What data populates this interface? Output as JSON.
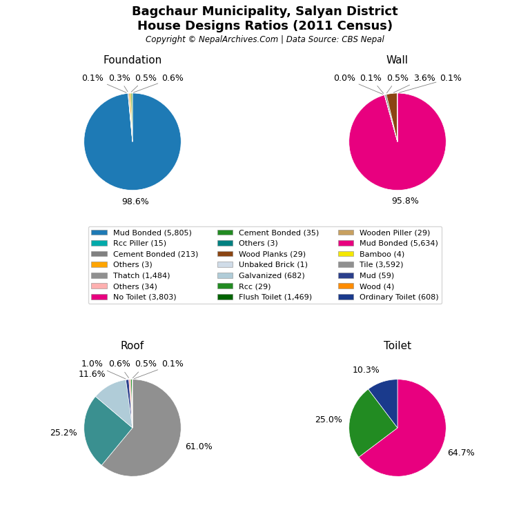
{
  "title": "Bagchaur Municipality, Salyan District",
  "subtitle": "House Designs Ratios (2011 Census)",
  "annotations": [
    "Copyright © NepalArchives.Com | Data Source: CBS Nepal"
  ],
  "legend": "center",
  "series": [
    {
      "name": "Mud Bonded (5,805)",
      "color": "#1e7ab5"
    },
    {
      "name": "Cement Bonded (35)",
      "color": "#228B22"
    },
    {
      "name": "Wooden Piller (29)",
      "color": "#c8a060"
    },
    {
      "name": "Rcc Piller (15)",
      "color": "#00aaaa"
    },
    {
      "name": "Others (3)",
      "color": "#008080"
    },
    {
      "name": "Mud Bonded (5,634)",
      "color": "#e8007f"
    },
    {
      "name": "Cement Bonded (213)",
      "color": "#808080"
    },
    {
      "name": "Wood Planks (29)",
      "color": "#8b4513"
    },
    {
      "name": "Bamboo (4)",
      "color": "#f5e800"
    },
    {
      "name": "Others (3)",
      "color": "#ffa500"
    },
    {
      "name": "Unbaked Brick (1)",
      "color": "#d0dce8"
    },
    {
      "name": "Tile (3,592)",
      "color": "#909090"
    },
    {
      "name": "Thatch (1,484)",
      "color": "#909090"
    },
    {
      "name": "Galvanized (682)",
      "color": "#b0ccd8"
    },
    {
      "name": "Mud (59)",
      "color": "#2b3f8c"
    },
    {
      "name": "Others (34)",
      "color": "#ffb0b0"
    },
    {
      "name": "Rcc (29)",
      "color": "#228B22"
    },
    {
      "name": "Wood (4)",
      "color": "#ff8c00"
    },
    {
      "name": "No Toilet (3,803)",
      "color": "#e8007f"
    },
    {
      "name": "Flush Toilet (1,469)",
      "color": "#006400"
    },
    {
      "name": "Ordinary Toilet (608)",
      "color": "#1a3a8c"
    }
  ],
  "chart_data": [
    {
      "type": "pie",
      "title": "Foundation",
      "values": [
        98.6,
        0.1,
        0.3,
        0.5,
        0.6
      ],
      "value_labels": [
        "98.6%",
        "0.1%",
        "0.3%",
        "0.5%",
        "0.6%"
      ],
      "colors": [
        "#1e7ab5",
        "#00aaaa",
        "#808080",
        "#ffa500",
        "#90c060"
      ]
    },
    {
      "type": "pie",
      "title": "Wall",
      "values": [
        95.8,
        0.05,
        0.1,
        0.5,
        3.6,
        0.1
      ],
      "value_labels": [
        "95.8%",
        "0.0%",
        "0.1%",
        "0.5%",
        "3.6%",
        "0.1%"
      ],
      "colors": [
        "#e8007f",
        "#c8a060",
        "#f5e800",
        "#707878",
        "#8b4513",
        "#ff8c00"
      ]
    },
    {
      "type": "pie",
      "title": "Roof",
      "values": [
        61.0,
        25.2,
        11.6,
        1.0,
        0.6,
        0.5,
        0.1
      ],
      "value_labels": [
        "61.0%",
        "25.2%",
        "11.6%",
        "1.0%",
        "0.6%",
        "0.5%",
        "0.1%"
      ],
      "colors": [
        "#909090",
        "#3a9090",
        "#b0ccd8",
        "#2b3f8c",
        "#ffb0b0",
        "#228B22",
        "#8b4513"
      ]
    },
    {
      "type": "pie",
      "title": "Toilet",
      "values": [
        64.7,
        25.0,
        10.3
      ],
      "value_labels": [
        "64.7%",
        "25.0%",
        "10.3%"
      ],
      "colors": [
        "#e8007f",
        "#228B22",
        "#1a3a8c"
      ]
    }
  ]
}
